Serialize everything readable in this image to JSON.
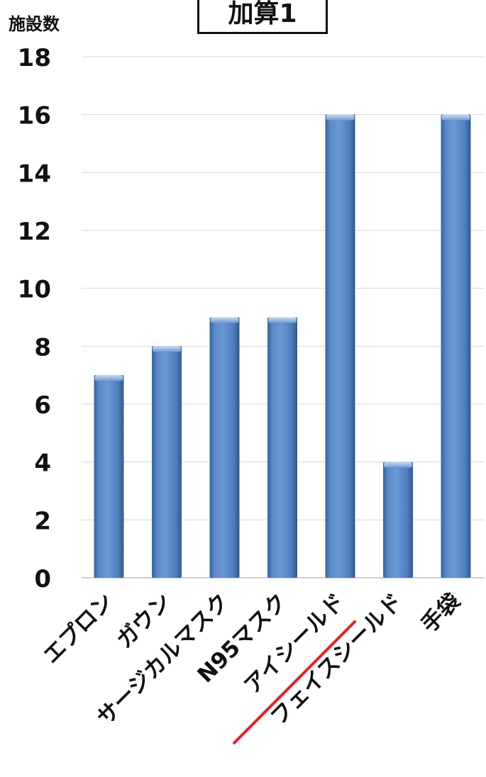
{
  "chart_data": {
    "type": "bar",
    "title": "加算1",
    "ylabel": "施設数",
    "xlabel": "",
    "ylim": [
      0,
      18
    ],
    "yticks": [
      0,
      2,
      4,
      6,
      8,
      10,
      12,
      14,
      16,
      18
    ],
    "grid": true,
    "categories": [
      "エプロン",
      "ガウン",
      "サージカルマスク",
      "N95マスク",
      "アイシールド",
      "フェイスシールド",
      "手袋"
    ],
    "values": [
      7,
      8,
      9,
      9,
      16,
      4,
      16
    ],
    "bar_color": "#4f81bd",
    "annotation_color": "#e82020"
  }
}
